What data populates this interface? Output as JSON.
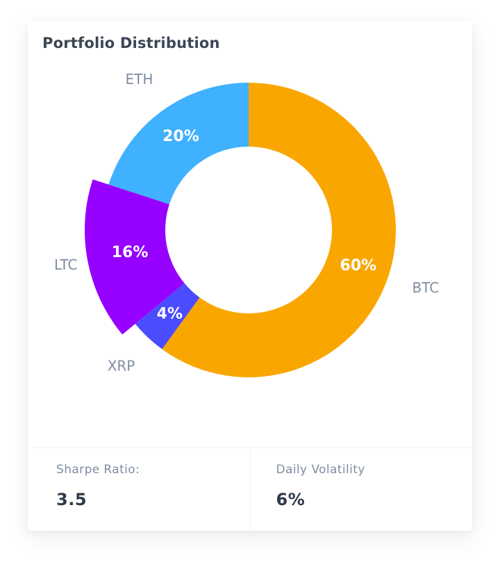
{
  "card": {
    "title": "Portfolio Distribution"
  },
  "colors": {
    "BTC": "#f9a600",
    "ETH": "#40b1ff",
    "LTC": "#9600ff",
    "XRP": "#4b4bff",
    "label_category": "#7e8da3",
    "label_percent": "#ffffff"
  },
  "chart_data": {
    "type": "pie",
    "donut": true,
    "start": "12 o'clock",
    "direction": "clockwise",
    "highlighted": "LTC",
    "slices": [
      {
        "label": "BTC",
        "value": 60,
        "display": "60%"
      },
      {
        "label": "XRP",
        "value": 4,
        "display": "4%"
      },
      {
        "label": "LTC",
        "value": 16,
        "display": "16%"
      },
      {
        "label": "ETH",
        "value": 20,
        "display": "20%"
      }
    ]
  },
  "stats": {
    "sharpe": {
      "label": "Sharpe Ratio:",
      "value": "3.5"
    },
    "volatility": {
      "label": "Daily Volatility",
      "value": "6%"
    }
  }
}
